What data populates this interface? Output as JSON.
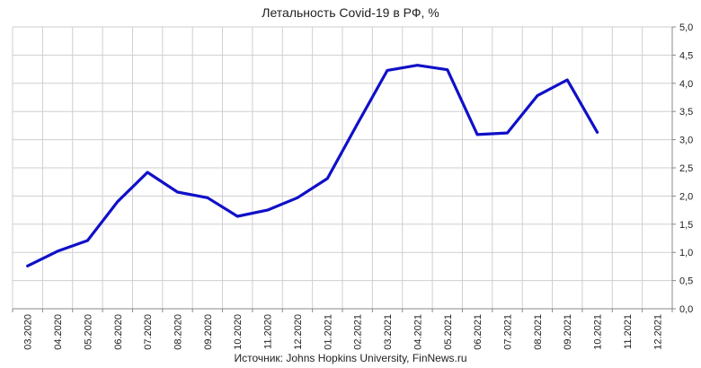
{
  "chart_data": {
    "type": "line",
    "title": "Летальность Covid-19 в РФ, %",
    "source": "Источник: Johns Hopkins University, FinNews.ru",
    "categories": [
      "03.2020",
      "04.2020",
      "05.2020",
      "06.2020",
      "07.2020",
      "08.2020",
      "09.2020",
      "10.2020",
      "11.2020",
      "12.2020",
      "01.2021",
      "02.2021",
      "03.2021",
      "04.2021",
      "05.2021",
      "06.2021",
      "07.2021",
      "08.2021",
      "09.2021",
      "10.2021",
      "11.2021",
      "12.2021"
    ],
    "series": [
      {
        "values": [
          0.76,
          1.02,
          1.21,
          1.9,
          2.42,
          2.07,
          1.97,
          1.64,
          1.75,
          1.97,
          2.31,
          3.28,
          4.23,
          4.32,
          4.24,
          3.09,
          3.12,
          3.78,
          4.06,
          3.13,
          null,
          null
        ]
      }
    ],
    "ylim": [
      0,
      5
    ],
    "yticks": [
      "0,0",
      "0,5",
      "1,0",
      "1,5",
      "2,0",
      "2,5",
      "3,0",
      "3,5",
      "4,0",
      "4,5",
      "5,0"
    ],
    "y_axis_side": "right",
    "grid": true,
    "line_color": "#1010c8"
  }
}
